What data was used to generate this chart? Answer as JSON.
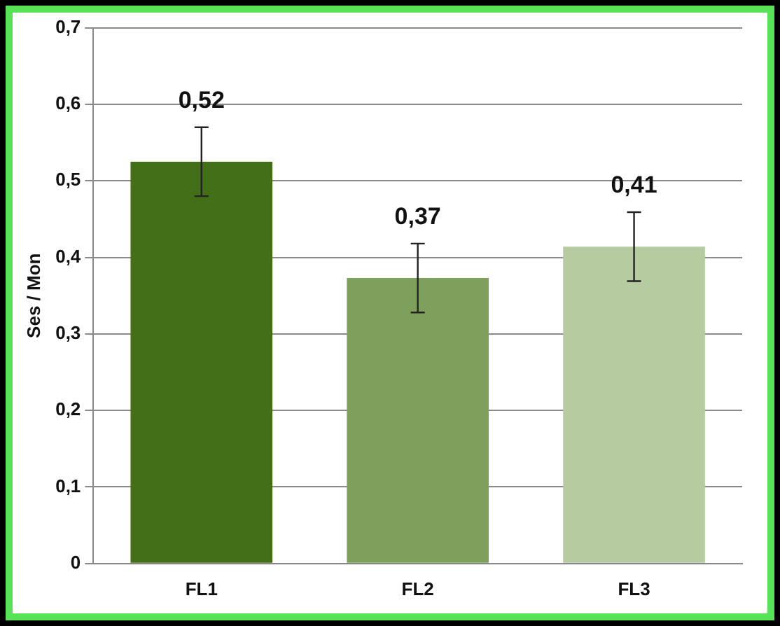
{
  "chart_data": {
    "type": "bar",
    "ylabel": "Ses / Mon",
    "categories": [
      "FL1",
      "FL2",
      "FL3"
    ],
    "values": [
      0.525,
      0.373,
      0.414
    ],
    "colors": [
      "#426f17",
      "#7fa05c",
      "#b6cba0"
    ],
    "errors": [
      0.045,
      0.045,
      0.045
    ],
    "value_labels": [
      "0,52",
      "0,37",
      "0,41"
    ],
    "ylim": [
      0,
      0.7
    ],
    "yticks": [
      0,
      {
        "value": 0.1,
        "label": "0,1"
      },
      {
        "value": 0.2,
        "label": "0,2"
      },
      {
        "value": 0.3,
        "label": "0,3"
      },
      {
        "value": 0.4,
        "label": "0,4"
      },
      {
        "value": 0.5,
        "label": "0,5"
      },
      {
        "value": 0.6,
        "label": "0,6"
      },
      {
        "value": 0.7,
        "label": "0,7"
      }
    ],
    "grid": "y",
    "legend": false
  }
}
